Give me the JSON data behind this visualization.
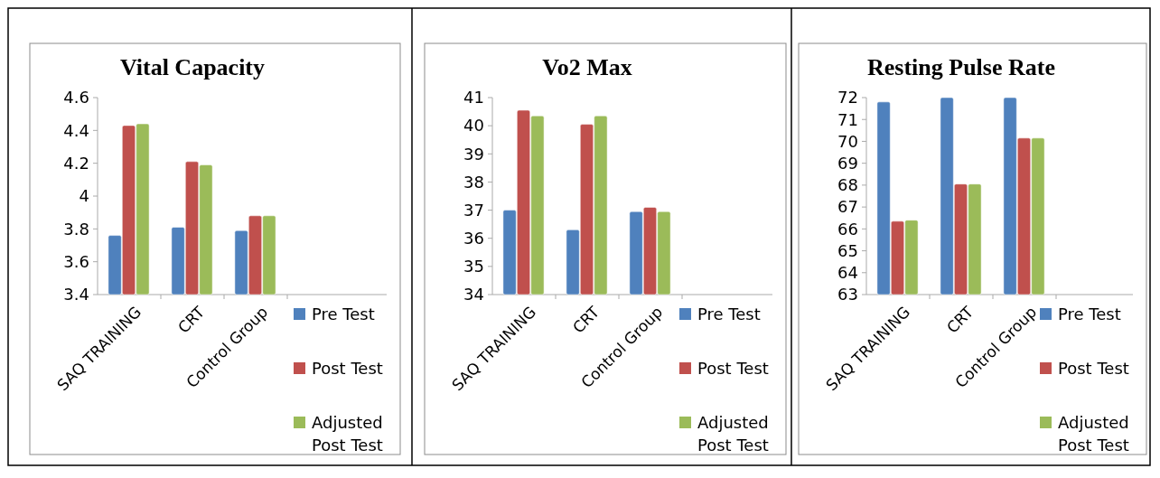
{
  "chart_data": [
    {
      "type": "bar",
      "title": "Vital Capacity",
      "categories": [
        "SAQ TRAINING",
        "CRT",
        "Control Group"
      ],
      "series": [
        {
          "name": "Pre Test",
          "color": "#4f81bd",
          "values": [
            3.76,
            3.81,
            3.79
          ]
        },
        {
          "name": "Post Test",
          "color": "#c0504d",
          "values": [
            4.43,
            4.21,
            3.88
          ]
        },
        {
          "name": "Adjusted Post Test",
          "color": "#9bbb59",
          "values": [
            4.44,
            4.19,
            3.88
          ]
        }
      ],
      "ylim": [
        3.4,
        4.6
      ],
      "yticks": [
        3.4,
        3.6,
        3.8,
        4,
        4.2,
        4.4,
        4.6
      ],
      "legend": "bottom right"
    },
    {
      "type": "bar",
      "title": "Vo2 Max",
      "categories": [
        "SAQ TRAINING",
        "CRT",
        "Control Group"
      ],
      "series": [
        {
          "name": "Pre Test",
          "color": "#4f81bd",
          "values": [
            37.0,
            36.3,
            36.95
          ]
        },
        {
          "name": "Post Test",
          "color": "#c0504d",
          "values": [
            40.55,
            40.05,
            37.1
          ]
        },
        {
          "name": "Adjusted Post Test",
          "color": "#9bbb59",
          "values": [
            40.35,
            40.35,
            36.95
          ]
        }
      ],
      "ylim": [
        34,
        41
      ],
      "yticks": [
        34,
        35,
        36,
        37,
        38,
        39,
        40,
        41
      ],
      "legend": "bottom right"
    },
    {
      "type": "bar",
      "title": "Resting Pulse Rate",
      "categories": [
        "SAQ TRAINING",
        "CRT",
        "Control Group"
      ],
      "series": [
        {
          "name": "Pre Test",
          "color": "#4f81bd",
          "values": [
            71.8,
            72,
            72
          ]
        },
        {
          "name": "Post Test",
          "color": "#c0504d",
          "values": [
            66.35,
            68.05,
            70.15
          ]
        },
        {
          "name": "Adjusted Post Test",
          "color": "#9bbb59",
          "values": [
            66.4,
            68.05,
            70.15
          ]
        }
      ],
      "ylim": [
        63,
        72
      ],
      "yticks": [
        63,
        64,
        65,
        66,
        67,
        68,
        69,
        70,
        71,
        72
      ],
      "legend": "bottom right"
    }
  ]
}
